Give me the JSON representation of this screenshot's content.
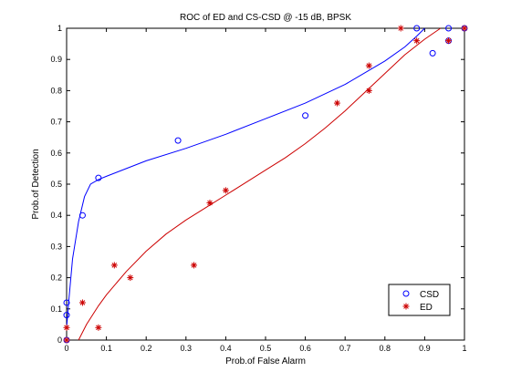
{
  "chart_data": {
    "type": "scatter",
    "title": "ROC of ED and CS-CSD @ -15 dB, BPSK",
    "xlabel": "Prob.of False Alarm",
    "ylabel": "Prob.of Detection",
    "xlim": [
      0,
      1
    ],
    "ylim": [
      0,
      1
    ],
    "xticks": [
      "0",
      "0.1",
      "0.2",
      "0.3",
      "0.4",
      "0.5",
      "0.6",
      "0.7",
      "0.8",
      "0.9",
      "1"
    ],
    "yticks": [
      "0",
      "0.1",
      "0.2",
      "0.3",
      "0.4",
      "0.5",
      "0.6",
      "0.7",
      "0.8",
      "0.9",
      "1"
    ],
    "grid": false,
    "legend_position": "bottom-right",
    "series": [
      {
        "name": "CSD",
        "marker": "circle",
        "color": "#0000ff",
        "points": [
          [
            0,
            0
          ],
          [
            0,
            0.08
          ],
          [
            0,
            0.12
          ],
          [
            0.04,
            0.4
          ],
          [
            0.08,
            0.52
          ],
          [
            0.28,
            0.64
          ],
          [
            0.6,
            0.72
          ],
          [
            0.88,
            1.0
          ],
          [
            0.92,
            0.92
          ],
          [
            0.96,
            1.0
          ],
          [
            0.96,
            0.96
          ],
          [
            1.0,
            1.0
          ]
        ],
        "fit_curve": [
          [
            0,
            0.04
          ],
          [
            0.005,
            0.12
          ],
          [
            0.015,
            0.26
          ],
          [
            0.03,
            0.38
          ],
          [
            0.045,
            0.46
          ],
          [
            0.06,
            0.5
          ],
          [
            0.08,
            0.515
          ],
          [
            0.1,
            0.525
          ],
          [
            0.15,
            0.55
          ],
          [
            0.2,
            0.575
          ],
          [
            0.3,
            0.615
          ],
          [
            0.4,
            0.66
          ],
          [
            0.5,
            0.71
          ],
          [
            0.6,
            0.76
          ],
          [
            0.7,
            0.82
          ],
          [
            0.8,
            0.895
          ],
          [
            0.85,
            0.94
          ],
          [
            0.88,
            0.975
          ],
          [
            0.9,
            1.0
          ]
        ]
      },
      {
        "name": "ED",
        "marker": "asterisk",
        "color": "#cc0000",
        "points": [
          [
            0,
            0
          ],
          [
            0,
            0.04
          ],
          [
            0.04,
            0.12
          ],
          [
            0.08,
            0.04
          ],
          [
            0.12,
            0.24
          ],
          [
            0.16,
            0.2
          ],
          [
            0.32,
            0.24
          ],
          [
            0.36,
            0.44
          ],
          [
            0.4,
            0.48
          ],
          [
            0.68,
            0.76
          ],
          [
            0.76,
            0.8
          ],
          [
            0.76,
            0.88
          ],
          [
            0.84,
            1.0
          ],
          [
            0.88,
            0.96
          ],
          [
            0.96,
            0.96
          ],
          [
            1.0,
            1.0
          ]
        ],
        "fit_curve": [
          [
            0.03,
            0.0
          ],
          [
            0.05,
            0.05
          ],
          [
            0.08,
            0.11
          ],
          [
            0.1,
            0.145
          ],
          [
            0.15,
            0.22
          ],
          [
            0.2,
            0.285
          ],
          [
            0.25,
            0.34
          ],
          [
            0.3,
            0.385
          ],
          [
            0.35,
            0.425
          ],
          [
            0.4,
            0.465
          ],
          [
            0.45,
            0.505
          ],
          [
            0.5,
            0.545
          ],
          [
            0.55,
            0.585
          ],
          [
            0.6,
            0.63
          ],
          [
            0.65,
            0.68
          ],
          [
            0.7,
            0.735
          ],
          [
            0.75,
            0.795
          ],
          [
            0.8,
            0.855
          ],
          [
            0.85,
            0.915
          ],
          [
            0.9,
            0.965
          ],
          [
            0.94,
            1.0
          ]
        ]
      }
    ]
  }
}
